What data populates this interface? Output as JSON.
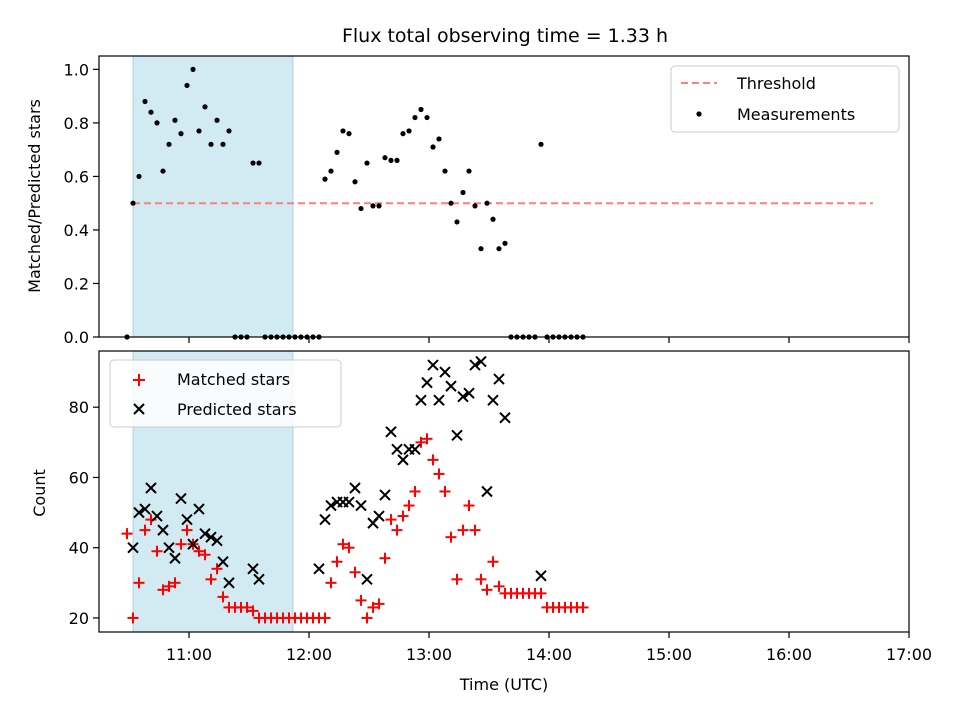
{
  "chart_data": [
    {
      "type": "scatter",
      "title": "Flux total observing time = 1.33 h",
      "xlabel": "",
      "ylabel": "Matched/Predicted stars",
      "xlim": [
        "10:15",
        "17:00"
      ],
      "ylim": [
        0,
        1.05
      ],
      "y_ticks": [
        "0.0",
        "0.2",
        "0.4",
        "0.6",
        "0.8",
        "1.0"
      ],
      "y_tick_values": [
        0,
        0.2,
        0.4,
        0.6,
        0.8,
        1.0
      ],
      "legend_position": "top-right",
      "legend": [
        "Threshold",
        "Measurements"
      ],
      "highlight_span": [
        "10:32",
        "11:52"
      ],
      "threshold": {
        "name": "Threshold",
        "value": 0.5,
        "x_range": [
          "10:32",
          "16:42"
        ],
        "color": "#ff7f7f",
        "style": "dashed"
      },
      "series": [
        {
          "name": "Measurements",
          "marker": "dot",
          "color": "#000000",
          "points": [
            [
              "10:29",
              0.0
            ],
            [
              "10:32",
              0.5
            ],
            [
              "10:35",
              0.6
            ],
            [
              "10:38",
              0.88
            ],
            [
              "10:41",
              0.84
            ],
            [
              "10:44",
              0.8
            ],
            [
              "10:47",
              0.62
            ],
            [
              "10:50",
              0.72
            ],
            [
              "10:53",
              0.81
            ],
            [
              "10:56",
              0.76
            ],
            [
              "10:59",
              0.94
            ],
            [
              "11:02",
              1.0
            ],
            [
              "11:05",
              0.77
            ],
            [
              "11:08",
              0.86
            ],
            [
              "11:11",
              0.72
            ],
            [
              "11:14",
              0.81
            ],
            [
              "11:17",
              0.72
            ],
            [
              "11:20",
              0.77
            ],
            [
              "11:23",
              0.0
            ],
            [
              "11:26",
              0.0
            ],
            [
              "11:29",
              0.0
            ],
            [
              "11:32",
              0.65
            ],
            [
              "11:35",
              0.65
            ],
            [
              "11:38",
              0.0
            ],
            [
              "11:41",
              0.0
            ],
            [
              "11:44",
              0.0
            ],
            [
              "11:47",
              0.0
            ],
            [
              "11:50",
              0.0
            ],
            [
              "11:53",
              0.0
            ],
            [
              "11:56",
              0.0
            ],
            [
              "11:59",
              0.0
            ],
            [
              "12:02",
              0.0
            ],
            [
              "12:05",
              0.0
            ],
            [
              "12:08",
              0.59
            ],
            [
              "12:11",
              0.62
            ],
            [
              "12:14",
              0.69
            ],
            [
              "12:17",
              0.77
            ],
            [
              "12:20",
              0.76
            ],
            [
              "12:23",
              0.58
            ],
            [
              "12:26",
              0.48
            ],
            [
              "12:29",
              0.65
            ],
            [
              "12:32",
              0.49
            ],
            [
              "12:35",
              0.49
            ],
            [
              "12:38",
              0.67
            ],
            [
              "12:41",
              0.66
            ],
            [
              "12:44",
              0.66
            ],
            [
              "12:47",
              0.76
            ],
            [
              "12:50",
              0.77
            ],
            [
              "12:53",
              0.82
            ],
            [
              "12:56",
              0.85
            ],
            [
              "12:59",
              0.82
            ],
            [
              "13:02",
              0.71
            ],
            [
              "13:05",
              0.74
            ],
            [
              "13:08",
              0.62
            ],
            [
              "13:11",
              0.5
            ],
            [
              "13:14",
              0.43
            ],
            [
              "13:17",
              0.54
            ],
            [
              "13:20",
              0.62
            ],
            [
              "13:23",
              0.49
            ],
            [
              "13:26",
              0.33
            ],
            [
              "13:29",
              0.5
            ],
            [
              "13:32",
              0.44
            ],
            [
              "13:35",
              0.33
            ],
            [
              "13:38",
              0.35
            ],
            [
              "13:41",
              0.0
            ],
            [
              "13:44",
              0.0
            ],
            [
              "13:47",
              0.0
            ],
            [
              "13:50",
              0.0
            ],
            [
              "13:53",
              0.0
            ],
            [
              "13:56",
              0.72
            ],
            [
              "13:59",
              0.0
            ],
            [
              "14:02",
              0.0
            ],
            [
              "14:05",
              0.0
            ],
            [
              "14:08",
              0.0
            ],
            [
              "14:11",
              0.0
            ],
            [
              "14:14",
              0.0
            ],
            [
              "14:17",
              0.0
            ]
          ]
        }
      ]
    },
    {
      "type": "scatter",
      "title": "",
      "xlabel": "Time (UTC)",
      "ylabel": "Count",
      "xlim": [
        "10:15",
        "17:00"
      ],
      "ylim": [
        16,
        96
      ],
      "x_ticks": [
        "11:00",
        "12:00",
        "13:00",
        "14:00",
        "15:00",
        "16:00",
        "17:00"
      ],
      "y_ticks": [
        "20",
        "40",
        "60",
        "80"
      ],
      "y_tick_values": [
        20,
        40,
        60,
        80
      ],
      "legend_position": "top-left",
      "legend": [
        "Matched stars",
        "Predicted stars"
      ],
      "highlight_span": [
        "10:32",
        "11:52"
      ],
      "series": [
        {
          "name": "Matched stars",
          "marker": "plus",
          "color": "#ff0000",
          "points": [
            [
              "10:29",
              44
            ],
            [
              "10:32",
              20
            ],
            [
              "10:35",
              30
            ],
            [
              "10:38",
              45
            ],
            [
              "10:41",
              48
            ],
            [
              "10:44",
              39
            ],
            [
              "10:47",
              28
            ],
            [
              "10:50",
              29
            ],
            [
              "10:53",
              30
            ],
            [
              "10:56",
              41
            ],
            [
              "10:59",
              45
            ],
            [
              "11:02",
              41
            ],
            [
              "11:05",
              39
            ],
            [
              "11:08",
              38
            ],
            [
              "11:11",
              31
            ],
            [
              "11:14",
              34
            ],
            [
              "11:17",
              26
            ],
            [
              "11:20",
              23
            ],
            [
              "11:23",
              23
            ],
            [
              "11:26",
              23
            ],
            [
              "11:29",
              23
            ],
            [
              "11:32",
              22
            ],
            [
              "11:35",
              20
            ],
            [
              "11:38",
              20
            ],
            [
              "11:41",
              20
            ],
            [
              "11:44",
              20
            ],
            [
              "11:47",
              20
            ],
            [
              "11:50",
              20
            ],
            [
              "11:53",
              20
            ],
            [
              "11:56",
              20
            ],
            [
              "11:59",
              20
            ],
            [
              "12:02",
              20
            ],
            [
              "12:05",
              20
            ],
            [
              "12:08",
              20
            ],
            [
              "12:11",
              30
            ],
            [
              "12:14",
              36
            ],
            [
              "12:17",
              41
            ],
            [
              "12:20",
              40
            ],
            [
              "12:23",
              33
            ],
            [
              "12:26",
              25
            ],
            [
              "12:29",
              20
            ],
            [
              "12:32",
              23
            ],
            [
              "12:35",
              24
            ],
            [
              "12:38",
              37
            ],
            [
              "12:41",
              48
            ],
            [
              "12:44",
              45
            ],
            [
              "12:47",
              49
            ],
            [
              "12:50",
              52
            ],
            [
              "12:53",
              56
            ],
            [
              "12:56",
              70
            ],
            [
              "12:59",
              71
            ],
            [
              "13:02",
              65
            ],
            [
              "13:05",
              61
            ],
            [
              "13:08",
              56
            ],
            [
              "13:11",
              43
            ],
            [
              "13:14",
              31
            ],
            [
              "13:17",
              45
            ],
            [
              "13:20",
              52
            ],
            [
              "13:23",
              45
            ],
            [
              "13:26",
              31
            ],
            [
              "13:29",
              28
            ],
            [
              "13:32",
              36
            ],
            [
              "13:35",
              29
            ],
            [
              "13:38",
              27
            ],
            [
              "13:41",
              27
            ],
            [
              "13:44",
              27
            ],
            [
              "13:47",
              27
            ],
            [
              "13:50",
              27
            ],
            [
              "13:53",
              27
            ],
            [
              "13:56",
              27
            ],
            [
              "13:59",
              23
            ],
            [
              "14:02",
              23
            ],
            [
              "14:05",
              23
            ],
            [
              "14:08",
              23
            ],
            [
              "14:11",
              23
            ],
            [
              "14:14",
              23
            ],
            [
              "14:17",
              23
            ]
          ]
        },
        {
          "name": "Predicted stars",
          "marker": "x",
          "color": "#000000",
          "points": [
            [
              "10:32",
              40
            ],
            [
              "10:35",
              50
            ],
            [
              "10:38",
              51
            ],
            [
              "10:41",
              57
            ],
            [
              "10:44",
              49
            ],
            [
              "10:47",
              45
            ],
            [
              "10:50",
              40
            ],
            [
              "10:53",
              37
            ],
            [
              "10:56",
              54
            ],
            [
              "10:59",
              48
            ],
            [
              "11:02",
              41
            ],
            [
              "11:05",
              51
            ],
            [
              "11:08",
              44
            ],
            [
              "11:11",
              43
            ],
            [
              "11:14",
              42
            ],
            [
              "11:17",
              36
            ],
            [
              "11:20",
              30
            ],
            [
              "11:32",
              34
            ],
            [
              "11:35",
              31
            ],
            [
              "12:05",
              34
            ],
            [
              "12:08",
              48
            ],
            [
              "12:11",
              52
            ],
            [
              "12:14",
              53
            ],
            [
              "12:17",
              53
            ],
            [
              "12:20",
              53
            ],
            [
              "12:23",
              57
            ],
            [
              "12:26",
              52
            ],
            [
              "12:29",
              31
            ],
            [
              "12:32",
              47
            ],
            [
              "12:35",
              49
            ],
            [
              "12:38",
              55
            ],
            [
              "12:41",
              73
            ],
            [
              "12:44",
              68
            ],
            [
              "12:47",
              65
            ],
            [
              "12:50",
              68
            ],
            [
              "12:53",
              68
            ],
            [
              "12:56",
              82
            ],
            [
              "12:59",
              87
            ],
            [
              "13:02",
              92
            ],
            [
              "13:05",
              82
            ],
            [
              "13:08",
              90
            ],
            [
              "13:11",
              86
            ],
            [
              "13:14",
              72
            ],
            [
              "13:17",
              83
            ],
            [
              "13:20",
              84
            ],
            [
              "13:23",
              92
            ],
            [
              "13:26",
              93
            ],
            [
              "13:29",
              56
            ],
            [
              "13:32",
              82
            ],
            [
              "13:35",
              88
            ],
            [
              "13:38",
              77
            ],
            [
              "13:56",
              32
            ]
          ]
        }
      ]
    }
  ],
  "colors": {
    "highlight": "#add8e6",
    "threshold": "#ff7f7f",
    "matched": "#ff0000",
    "predicted": "#000000",
    "measurement": "#000000"
  }
}
